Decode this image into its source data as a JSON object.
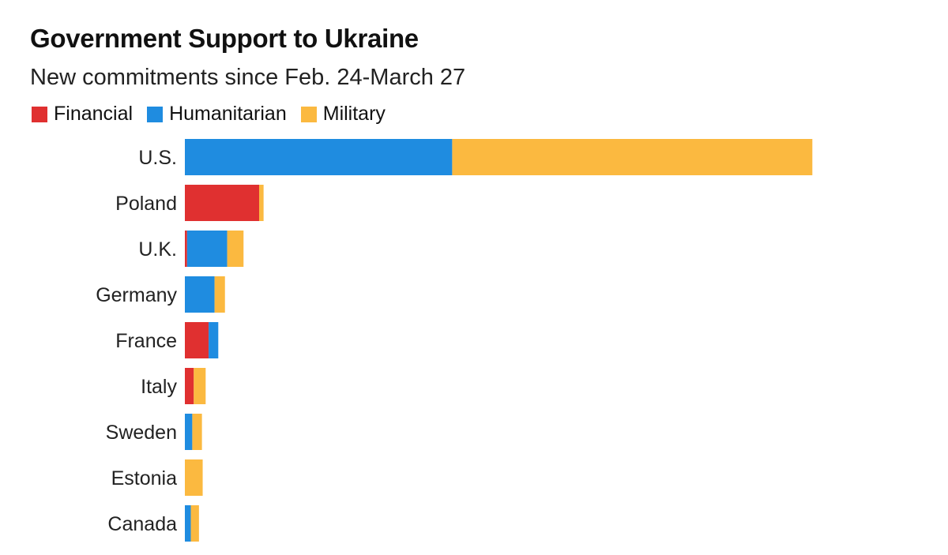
{
  "chart_data": {
    "type": "bar",
    "orientation": "horizontal",
    "stacked": true,
    "title": "Government Support to Ukraine",
    "subtitle": "New commitments since Feb. 24-March 27",
    "categories": [
      "U.S.",
      "Poland",
      "U.K.",
      "Germany",
      "France",
      "Italy",
      "Sweden",
      "Estonia",
      "Canada"
    ],
    "series": [
      {
        "name": "Financial",
        "color": "#e03030",
        "values": [
          0,
          100,
          3,
          0,
          32,
          12,
          0,
          0,
          0
        ]
      },
      {
        "name": "Humanitarian",
        "color": "#1f8ce0",
        "values": [
          360,
          0,
          54,
          40,
          13,
          0,
          10,
          0,
          8
        ]
      },
      {
        "name": "Military",
        "color": "#fbb940",
        "values": [
          485,
          6,
          22,
          14,
          0,
          16,
          13,
          24,
          11
        ]
      }
    ],
    "xlim": [
      0,
      900
    ],
    "grid": false,
    "legend_position": "top-left"
  }
}
